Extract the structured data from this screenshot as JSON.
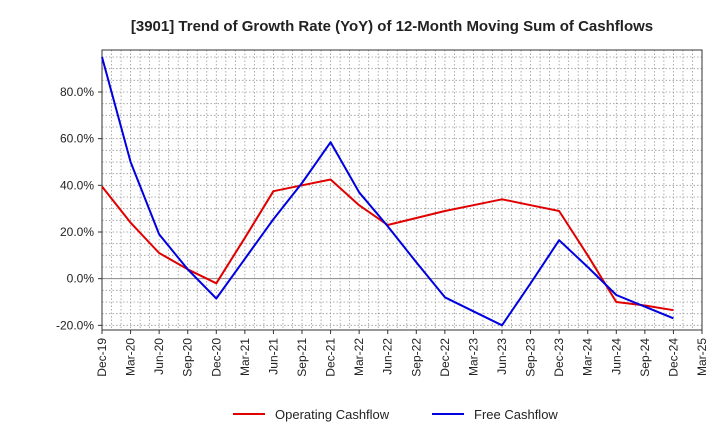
{
  "chart_data": {
    "type": "line",
    "title": "[3901]  Trend of Growth Rate (YoY) of 12-Month Moving Sum of Cashflows",
    "xlabel": "",
    "ylabel": "",
    "ylim": [
      -22,
      98
    ],
    "y_ticks": [
      -20,
      0,
      20,
      40,
      60,
      80
    ],
    "y_tick_labels": [
      "-20.0%",
      "0.0%",
      "20.0%",
      "40.0%",
      "60.0%",
      "80.0%"
    ],
    "categories": [
      "Dec-19",
      "Mar-20",
      "Jun-20",
      "Sep-20",
      "Dec-20",
      "Mar-21",
      "Jun-21",
      "Sep-21",
      "Dec-21",
      "Mar-22",
      "Jun-22",
      "Sep-22",
      "Dec-22",
      "Mar-23",
      "Jun-23",
      "Sep-23",
      "Dec-23",
      "Mar-24",
      "Jun-24",
      "Sep-24",
      "Dec-24",
      "Mar-25"
    ],
    "grid": true,
    "legend_position": "bottom",
    "series": [
      {
        "name": "Operating Cashflow",
        "color": "#e00000",
        "values": [
          39.5,
          24,
          11,
          4,
          -2,
          17.5,
          37.5,
          40,
          42.5,
          31.5,
          23,
          26,
          29,
          31.5,
          34,
          31.5,
          29,
          10,
          -10,
          -11.5,
          -13.5,
          null
        ]
      },
      {
        "name": "Free Cashflow",
        "color": "#0000e0",
        "values": [
          95,
          50,
          19,
          4,
          -8.5,
          8.5,
          25.5,
          41,
          58.5,
          37,
          22.5,
          7,
          -8,
          -14,
          -20,
          -2,
          16.5,
          5,
          -7,
          -12,
          -17,
          null
        ]
      }
    ]
  }
}
